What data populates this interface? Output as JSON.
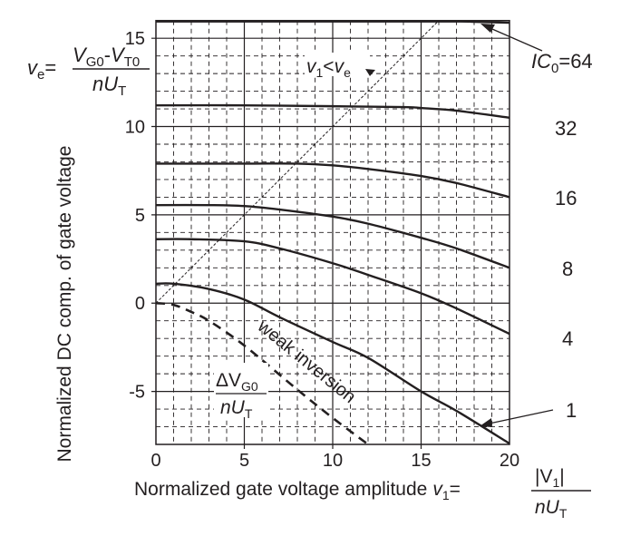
{
  "chart_data": {
    "type": "line",
    "xlabel": "Normalized gate voltage amplitude",
    "xlabel_formula": {
      "lhs": "v",
      "lhs_sub": "1",
      "num": "|V",
      "num_sub": "1",
      "num_end": "|",
      "den": "nU",
      "den_sub": "T"
    },
    "ylabel": "Normalized DC comp. of gate voltage",
    "ylabel_formula": {
      "lhs": "v",
      "lhs_sub": "e",
      "num_a": "V",
      "num_a_sub": "G0",
      "num_b": "V",
      "num_b_sub": "T0",
      "den": "nU",
      "den_sub": "T"
    },
    "xlim": [
      0,
      20
    ],
    "ylim": [
      -8,
      16
    ],
    "xticks": [
      "0",
      "5",
      "10",
      "15",
      "20"
    ],
    "yticks": [
      "-5",
      "0",
      "5",
      "10",
      "15"
    ],
    "grid": true,
    "series": [
      {
        "name": "IC0=64",
        "label": "IC",
        "label_sub": "0",
        "label_end": "=64",
        "x": [
          0,
          16,
          18,
          20
        ],
        "y": [
          15.95,
          15.95,
          15.93,
          15.88
        ]
      },
      {
        "name": "32",
        "label": "32",
        "x": [
          0,
          5,
          10,
          14,
          15,
          17,
          20
        ],
        "y": [
          11.2,
          11.2,
          11.15,
          11.1,
          11.05,
          10.9,
          10.5
        ]
      },
      {
        "name": "16",
        "label": "16",
        "x": [
          0,
          5,
          8,
          10,
          12,
          15,
          17,
          20
        ],
        "y": [
          7.9,
          7.9,
          7.9,
          7.8,
          7.6,
          7.2,
          6.8,
          6.0
        ]
      },
      {
        "name": "8",
        "label": "8",
        "x": [
          0,
          3,
          5,
          7,
          10,
          12,
          15,
          17,
          20
        ],
        "y": [
          5.55,
          5.55,
          5.5,
          5.3,
          4.9,
          4.5,
          3.7,
          3.1,
          2.0
        ]
      },
      {
        "name": "4",
        "label": "4",
        "x": [
          0,
          2,
          5,
          7,
          10,
          12,
          15,
          17,
          20
        ],
        "y": [
          3.62,
          3.62,
          3.5,
          3.1,
          2.26,
          1.6,
          0.56,
          -0.3,
          -1.74
        ]
      },
      {
        "name": "1",
        "label": "1",
        "x": [
          0,
          1,
          3,
          5,
          7,
          10,
          12,
          15,
          17,
          20
        ],
        "y": [
          1.1,
          1.1,
          0.8,
          0.2,
          -0.8,
          -2.2,
          -3.1,
          -5.0,
          -6.1,
          -7.95
        ]
      }
    ],
    "weak_inversion": {
      "label": "weak inversion",
      "x": [
        0,
        1,
        2,
        3,
        5,
        8,
        10,
        12
      ],
      "y": [
        0,
        -0.1,
        -0.5,
        -1.0,
        -2.4,
        -4.9,
        -6.5,
        -8
      ]
    },
    "diagonal": {
      "x": [
        0,
        16
      ],
      "y": [
        0,
        16
      ]
    },
    "annotations": {
      "v1_lt_ve": {
        "a": "v",
        "a_sub": "1",
        "op": "<",
        "b": "v",
        "b_sub": "e"
      },
      "delta": {
        "num": "ΔV",
        "num_sub": "G0",
        "den": "nU",
        "den_sub": "T"
      }
    }
  }
}
